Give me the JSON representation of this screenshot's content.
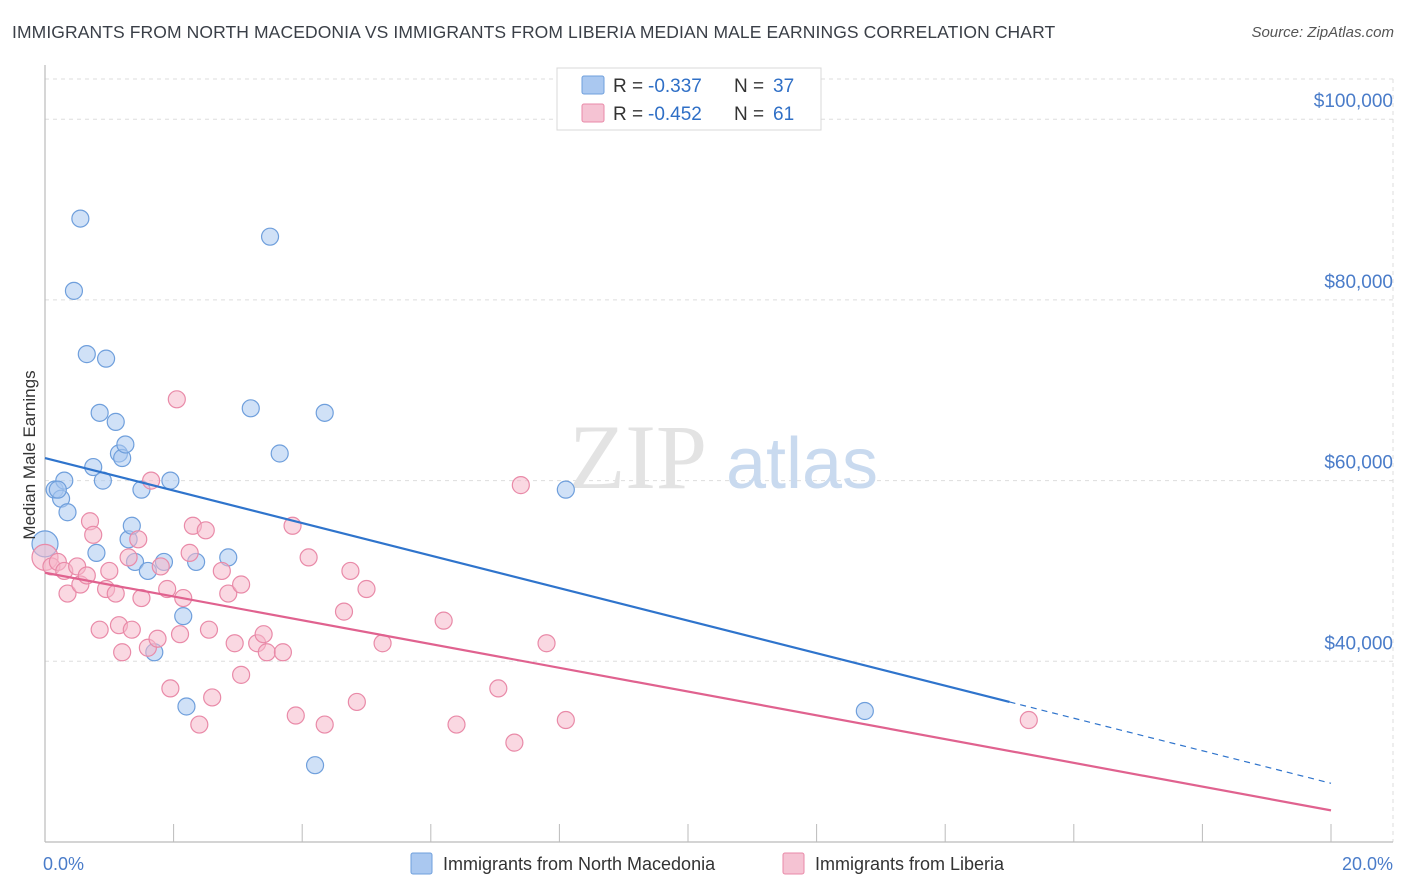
{
  "title": "IMMIGRANTS FROM NORTH MACEDONIA VS IMMIGRANTS FROM LIBERIA MEDIAN MALE EARNINGS CORRELATION CHART",
  "source": "Source: ZipAtlas.com",
  "watermark": {
    "zip": "ZIP",
    "atlas": "atlas"
  },
  "colors": {
    "blue_fill": "#aac8f0",
    "blue_stroke": "#6f9fdc",
    "blue_line": "#2f74cc",
    "pink_fill": "#f5b8cb",
    "pink_stroke": "#e98aa8",
    "pink_line": "#e0628f",
    "axis_label": "#4a7cc9",
    "grid": "#dddddd"
  },
  "legend": {
    "rows": [
      {
        "series": "blue",
        "r_label": "R =",
        "r_value": "-0.337",
        "n_label": "N =",
        "n_value": "37"
      },
      {
        "series": "pink",
        "r_label": "R =",
        "r_value": "-0.452",
        "n_label": "N =",
        "n_value": "61"
      }
    ]
  },
  "chart_data": {
    "type": "scatter",
    "xlabel": "",
    "ylabel": "Median Male Earnings",
    "xlim": [
      0,
      20
    ],
    "ylim": [
      20000,
      106000
    ],
    "x_tick_labels": [
      {
        "value": 0,
        "label": "0.0%"
      },
      {
        "value": 20,
        "label": "20.0%"
      }
    ],
    "y_ticks": [
      {
        "value": 40000,
        "label": "$40,000"
      },
      {
        "value": 60000,
        "label": "$60,000"
      },
      {
        "value": 80000,
        "label": "$80,000"
      },
      {
        "value": 100000,
        "label": "$100,000"
      }
    ],
    "y_gridlines": [
      40000,
      60000,
      80000,
      100000
    ],
    "x_minor_ticks": [
      2,
      4,
      6,
      8,
      10,
      12,
      14,
      16,
      18
    ],
    "series": [
      {
        "name": "Immigrants from North Macedonia",
        "color": "blue",
        "R": -0.337,
        "N": 37,
        "trend": {
          "x0": 0,
          "y0": 62500,
          "x1": 15,
          "y1": 35500,
          "dash_to_x": 20,
          "dash_to_y": 26500
        },
        "points": [
          [
            0.0,
            53000
          ],
          [
            0.15,
            59000
          ],
          [
            0.25,
            58000
          ],
          [
            0.3,
            60000
          ],
          [
            0.35,
            56500
          ],
          [
            0.45,
            81000
          ],
          [
            0.55,
            89000
          ],
          [
            0.65,
            74000
          ],
          [
            0.75,
            61500
          ],
          [
            0.8,
            52000
          ],
          [
            0.85,
            67500
          ],
          [
            0.9,
            60000
          ],
          [
            0.95,
            73500
          ],
          [
            1.1,
            66500
          ],
          [
            1.15,
            63000
          ],
          [
            1.2,
            62500
          ],
          [
            1.25,
            64000
          ],
          [
            1.3,
            53500
          ],
          [
            1.35,
            55000
          ],
          [
            1.4,
            51000
          ],
          [
            1.5,
            59000
          ],
          [
            1.7,
            41000
          ],
          [
            1.85,
            51000
          ],
          [
            1.95,
            60000
          ],
          [
            2.15,
            45000
          ],
          [
            2.2,
            35000
          ],
          [
            2.35,
            51000
          ],
          [
            2.85,
            51500
          ],
          [
            3.2,
            68000
          ],
          [
            3.5,
            87000
          ],
          [
            3.65,
            63000
          ],
          [
            4.2,
            28500
          ],
          [
            4.35,
            67500
          ],
          [
            8.1,
            59000
          ],
          [
            12.75,
            34500
          ],
          [
            0.2,
            59000
          ],
          [
            1.6,
            50000
          ]
        ]
      },
      {
        "name": "Immigrants from Liberia",
        "color": "pink",
        "R": -0.452,
        "N": 61,
        "trend": {
          "x0": 0,
          "y0": 49800,
          "x1": 20,
          "y1": 23500
        },
        "points": [
          [
            0.0,
            51500
          ],
          [
            0.1,
            50500
          ],
          [
            0.2,
            51000
          ],
          [
            0.3,
            50000
          ],
          [
            0.35,
            47500
          ],
          [
            0.5,
            50500
          ],
          [
            0.55,
            48500
          ],
          [
            0.65,
            49500
          ],
          [
            0.7,
            55500
          ],
          [
            0.75,
            54000
          ],
          [
            0.85,
            43500
          ],
          [
            0.95,
            48000
          ],
          [
            1.0,
            50000
          ],
          [
            1.1,
            47500
          ],
          [
            1.15,
            44000
          ],
          [
            1.2,
            41000
          ],
          [
            1.3,
            51500
          ],
          [
            1.35,
            43500
          ],
          [
            1.45,
            53500
          ],
          [
            1.5,
            47000
          ],
          [
            1.6,
            41500
          ],
          [
            1.65,
            60000
          ],
          [
            1.75,
            42500
          ],
          [
            1.8,
            50500
          ],
          [
            1.9,
            48000
          ],
          [
            1.95,
            37000
          ],
          [
            2.05,
            69000
          ],
          [
            2.1,
            43000
          ],
          [
            2.15,
            47000
          ],
          [
            2.25,
            52000
          ],
          [
            2.3,
            55000
          ],
          [
            2.4,
            33000
          ],
          [
            2.5,
            54500
          ],
          [
            2.55,
            43500
          ],
          [
            2.6,
            36000
          ],
          [
            2.75,
            50000
          ],
          [
            2.85,
            47500
          ],
          [
            2.95,
            42000
          ],
          [
            3.05,
            48500
          ],
          [
            3.05,
            38500
          ],
          [
            3.3,
            42000
          ],
          [
            3.4,
            43000
          ],
          [
            3.45,
            41000
          ],
          [
            3.7,
            41000
          ],
          [
            3.85,
            55000
          ],
          [
            3.9,
            34000
          ],
          [
            4.1,
            51500
          ],
          [
            4.35,
            33000
          ],
          [
            4.65,
            45500
          ],
          [
            4.75,
            50000
          ],
          [
            4.85,
            35500
          ],
          [
            5.0,
            48000
          ],
          [
            5.25,
            42000
          ],
          [
            6.2,
            44500
          ],
          [
            6.4,
            33000
          ],
          [
            7.05,
            37000
          ],
          [
            7.3,
            31000
          ],
          [
            7.4,
            59500
          ],
          [
            7.8,
            42000
          ],
          [
            8.1,
            33500
          ],
          [
            15.3,
            33500
          ]
        ]
      }
    ],
    "legend_position": "bottom"
  }
}
